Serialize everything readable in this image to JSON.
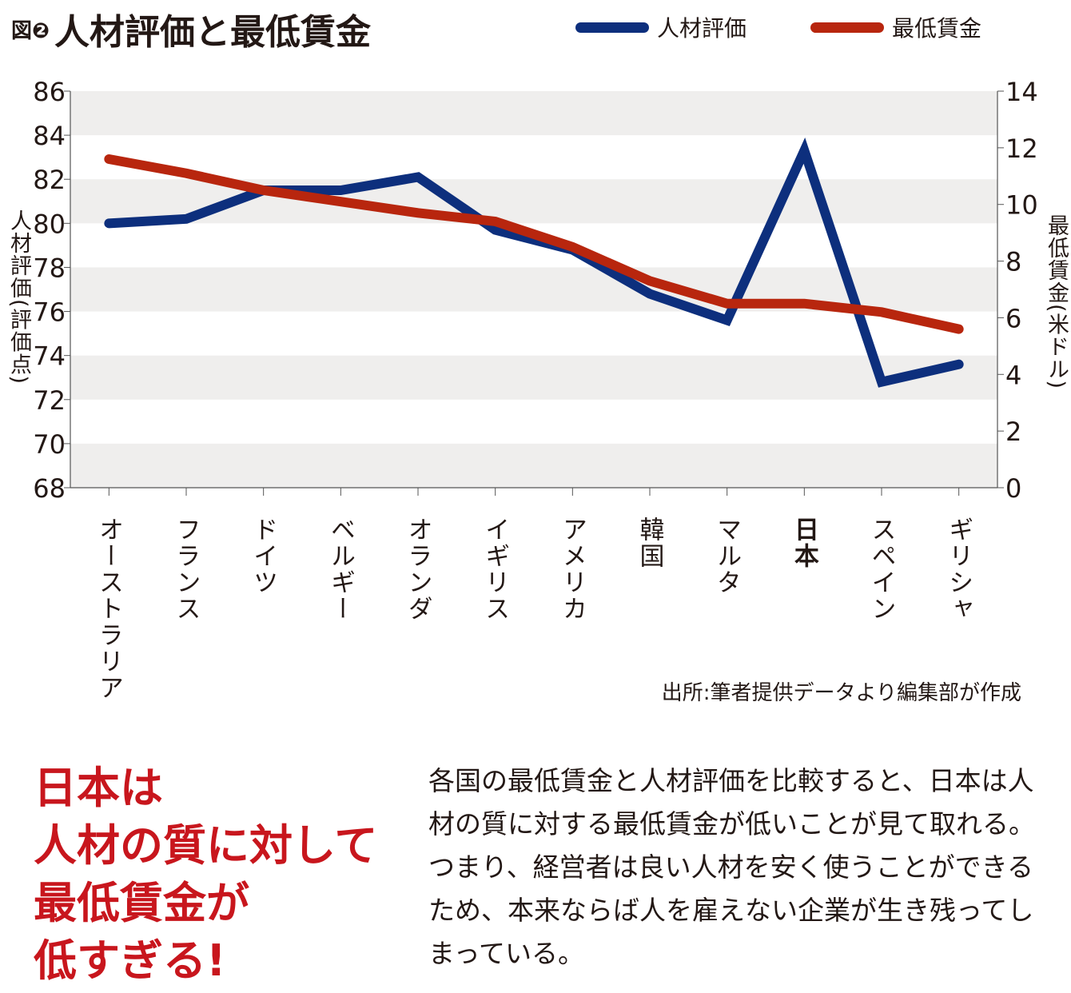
{
  "figure_label": "図❷",
  "chart_data": {
    "type": "line",
    "title": "人材評価と最低賃金",
    "categories": [
      "オーストラリア",
      "フランス",
      "ドイツ",
      "ベルギー",
      "オランダ",
      "イギリス",
      "アメリカ",
      "韓国",
      "マルタ",
      "日本",
      "スペイン",
      "ギリシャ"
    ],
    "highlight_category": "日本",
    "series": [
      {
        "name": "人材評価",
        "axis": "left",
        "color": "#0d2f7d",
        "values": [
          80.0,
          80.2,
          81.5,
          81.5,
          82.1,
          79.7,
          78.8,
          76.8,
          75.6,
          83.3,
          72.8,
          73.6
        ]
      },
      {
        "name": "最低賃金",
        "axis": "right",
        "color": "#b8260e",
        "values": [
          11.6,
          11.1,
          10.5,
          10.1,
          9.7,
          9.4,
          8.5,
          7.3,
          6.5,
          6.5,
          6.2,
          5.6
        ]
      }
    ],
    "ylabel": "人材評価(評価点)",
    "y2label": "最低賃金(米ドル)",
    "ylim": [
      68,
      86
    ],
    "y2lim": [
      0,
      14
    ],
    "yticks": [
      "68",
      "70",
      "72",
      "74",
      "76",
      "78",
      "80",
      "82",
      "84",
      "86"
    ],
    "y2ticks": [
      "0",
      "2",
      "4",
      "6",
      "8",
      "10",
      "12",
      "14"
    ],
    "legend": "top-right",
    "grid": "alternating horizontal bands"
  },
  "source": "出所:筆者提供データより編集部が作成",
  "headline": [
    "日本は",
    "人材の質に対して",
    "最低賃金が",
    "低すぎる!"
  ],
  "body": "各国の最低賃金と人材評価を比較すると、日本は人材の質に対する最低賃金が低いことが見て取れる。つまり、経営者は良い人材を安く使うことができるため、本来ならば人を雇えない企業が生き残ってしまっている。"
}
